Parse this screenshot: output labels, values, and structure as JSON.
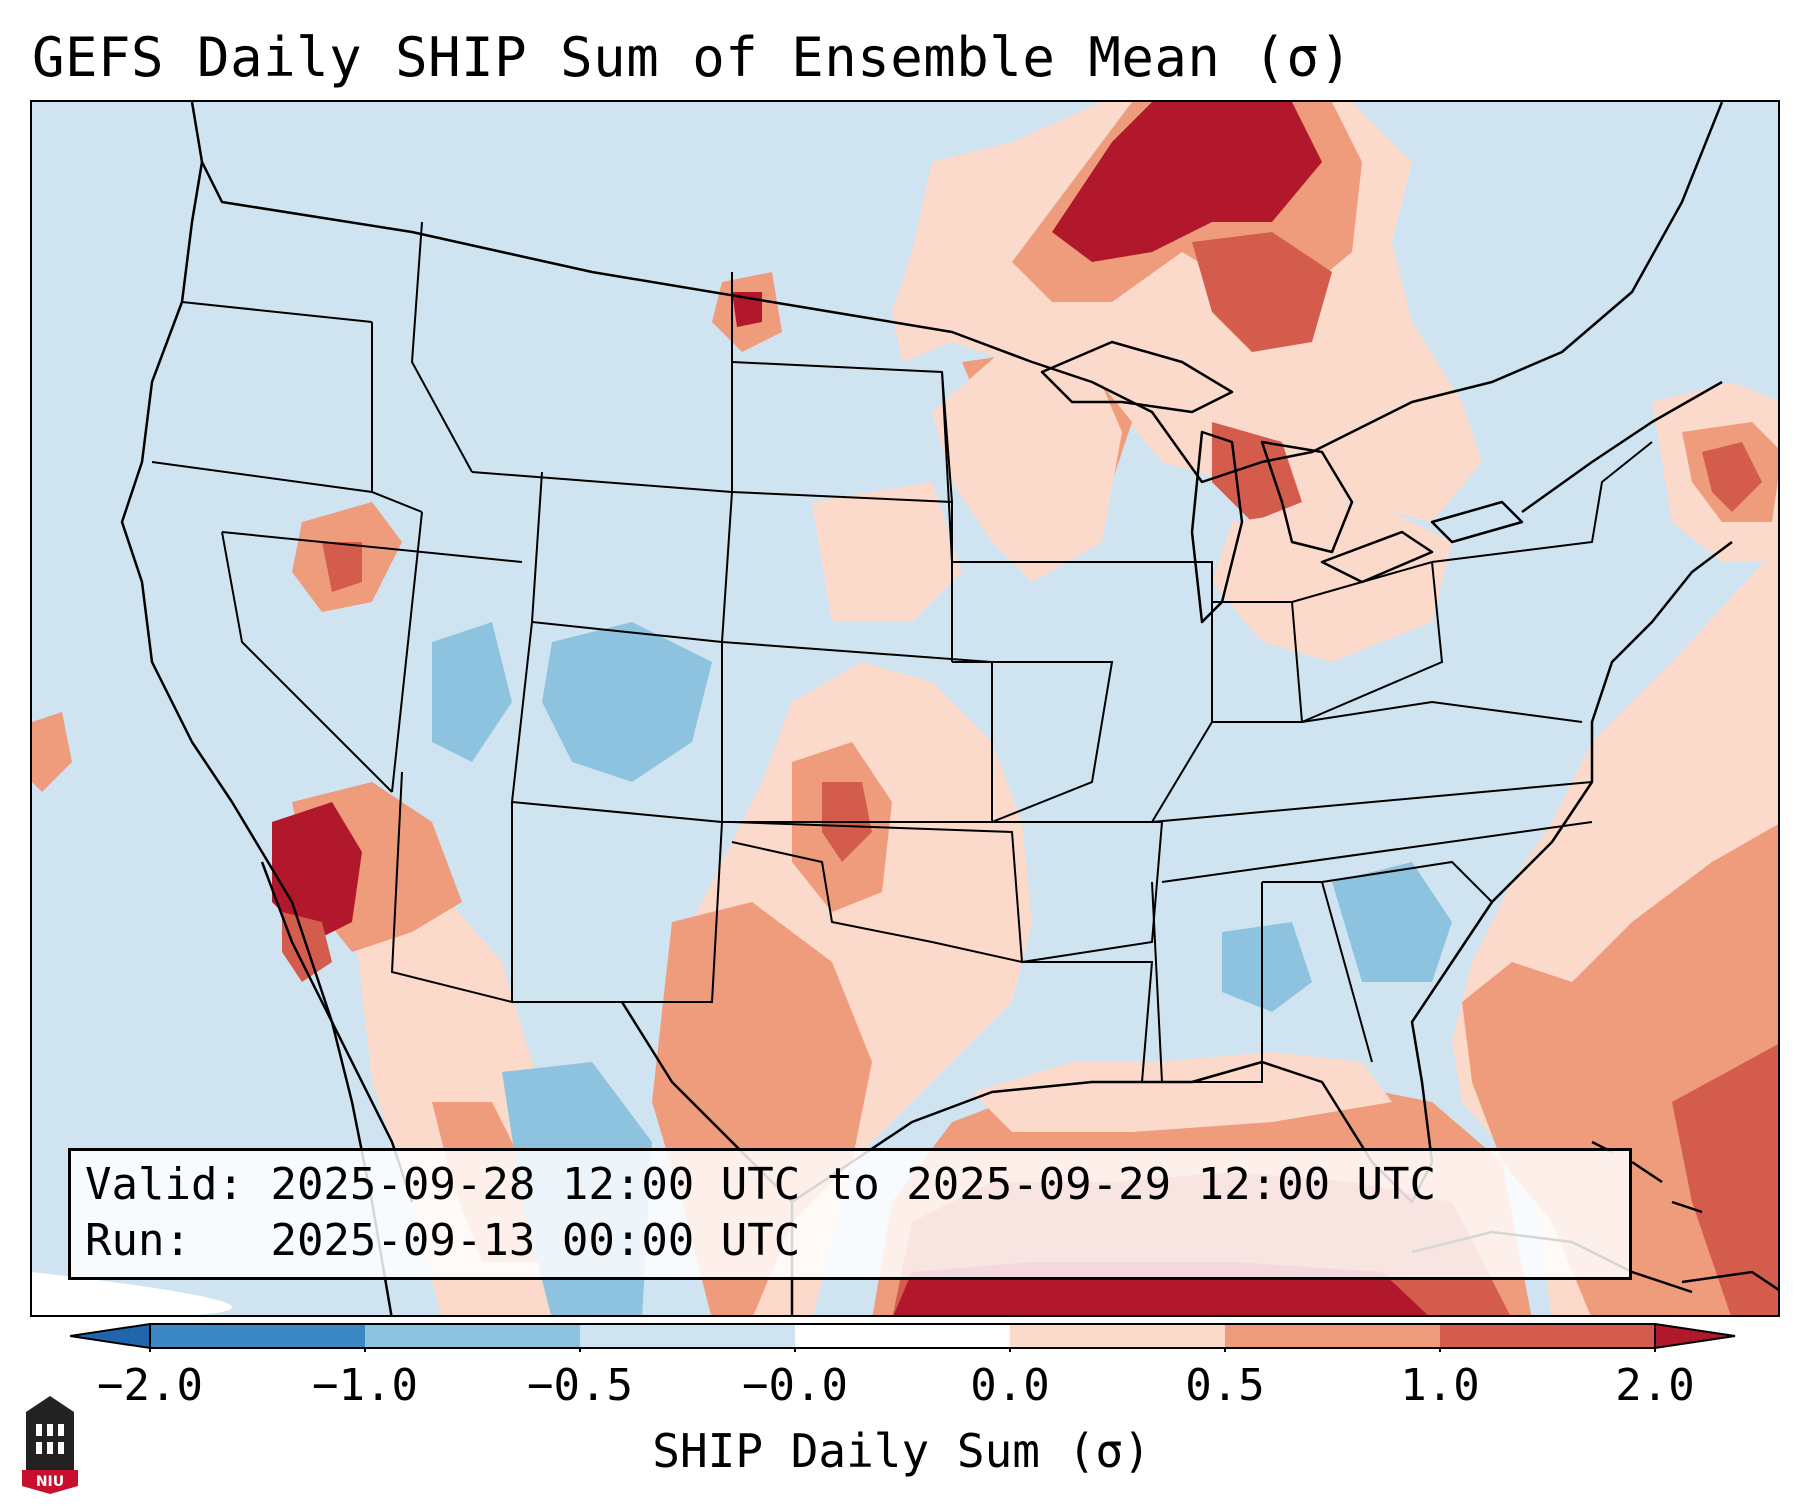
{
  "title": "GEFS Daily SHIP Sum of Ensemble Mean (σ)",
  "info": {
    "valid_label": "Valid:",
    "valid_value": "2025-09-28 12:00 UTC to 2025-09-29 12:00 UTC",
    "run_label": "Run:",
    "run_value": "2025-09-13 00:00 UTC"
  },
  "colorbar": {
    "label": "SHIP Daily Sum (σ)",
    "ticks": [
      "−2.0",
      "−1.0",
      "−0.5",
      "−0.0",
      "0.0",
      "0.5",
      "1.0",
      "2.0"
    ],
    "bin_colors": [
      "#3a87c4",
      "#8ec3e0",
      "#cfe4f0",
      "#ffffff",
      "#fbdacb",
      "#ef9c7d",
      "#d45c4c"
    ],
    "under_color": "#2166ac",
    "over_color": "#b2182b"
  },
  "legend_colors": {
    "ocean_background": "#cfe4f0",
    "state_borders": "#000000"
  },
  "logo": {
    "text": "NIU"
  }
}
